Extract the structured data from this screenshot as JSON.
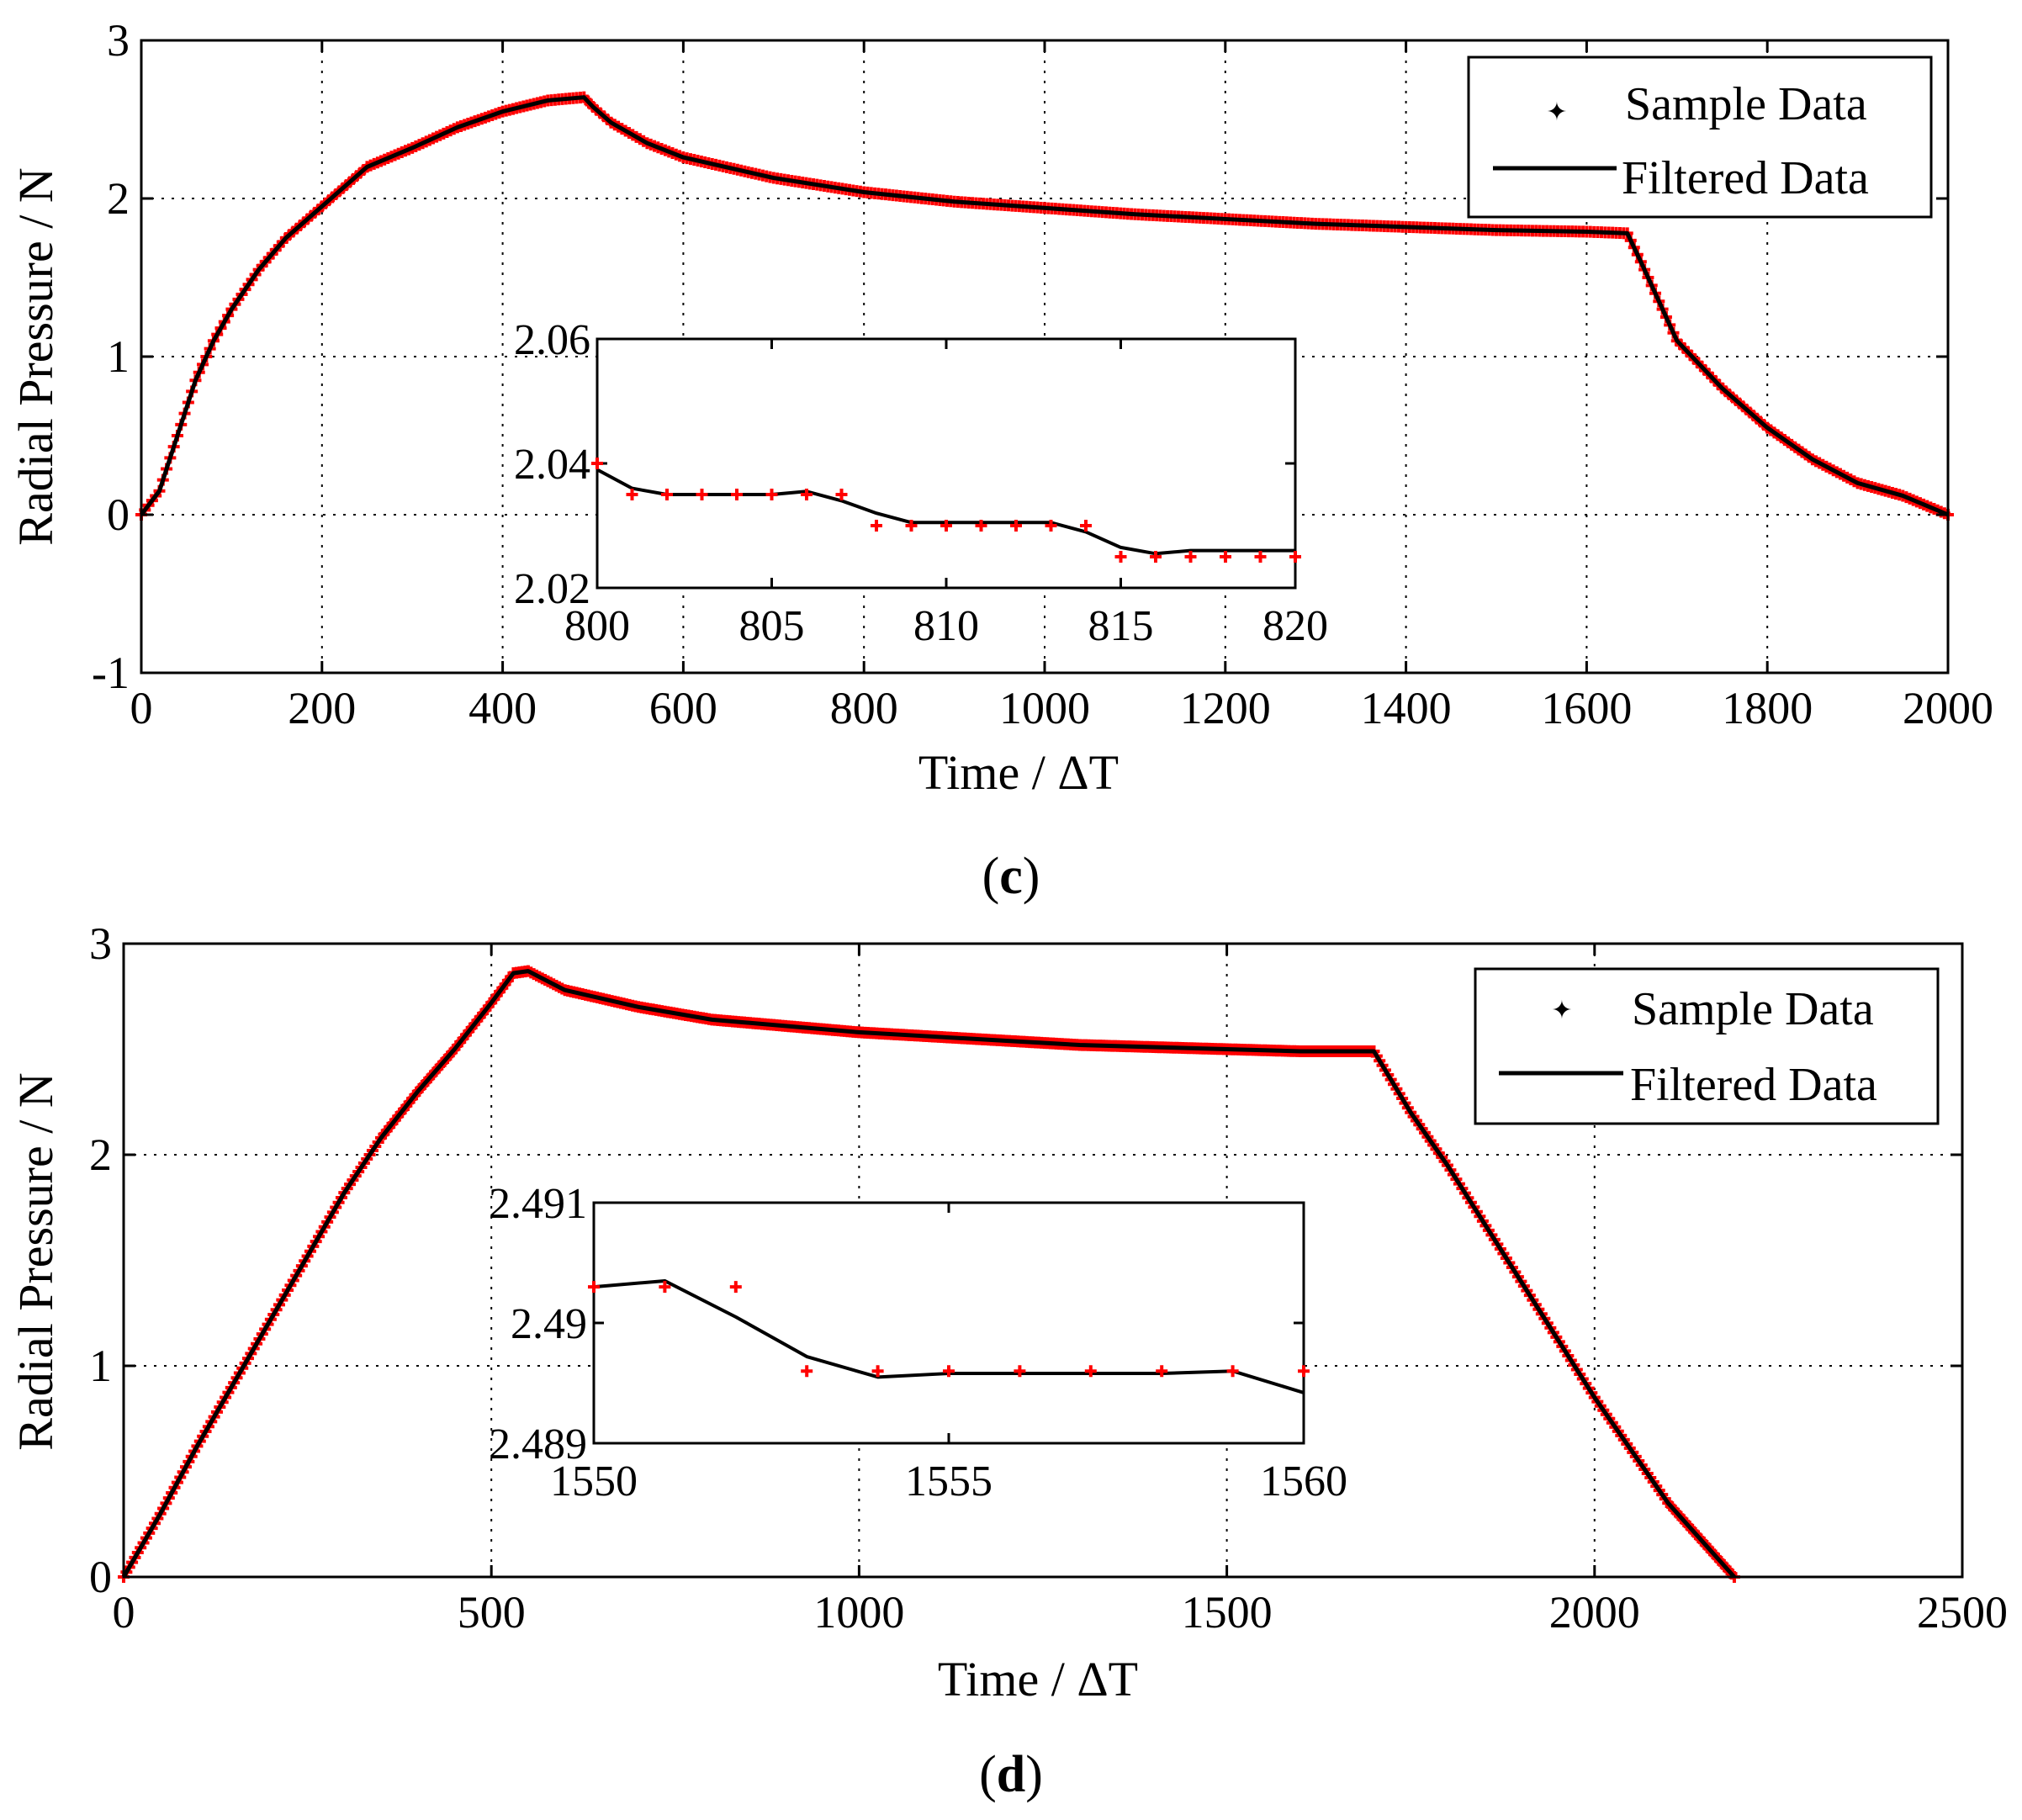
{
  "chart_data": [
    {
      "type": "scatter",
      "panel_label": {
        "open": "(",
        "letter": "c",
        "close": ")"
      },
      "xlabel": "Time / ΔT",
      "ylabel": "Radial Pressure / N",
      "xlim": [
        0,
        2000
      ],
      "ylim": [
        -1,
        3
      ],
      "xticks": [
        0,
        200,
        400,
        600,
        800,
        1000,
        1200,
        1400,
        1600,
        1800,
        2000
      ],
      "yticks": [
        -1,
        0,
        1,
        2,
        3
      ],
      "xtick_labels": [
        "0",
        "200",
        "400",
        "600",
        "800",
        "1000",
        "1200",
        "1400",
        "1600",
        "1800",
        "2000"
      ],
      "ytick_labels": [
        "-1",
        "0",
        "1",
        "2",
        "3"
      ],
      "grid": true,
      "legend": {
        "position": "top-right",
        "entries": [
          "Sample Data",
          "Filtered Data"
        ]
      },
      "series": [
        {
          "name": "Sample Data",
          "style": "red-markers",
          "color": "#ff0000",
          "x": [
            0,
            20,
            40,
            60,
            80,
            100,
            130,
            160,
            200,
            250,
            300,
            350,
            400,
            450,
            490,
            500,
            520,
            560,
            600,
            700,
            800,
            900,
            1000,
            1100,
            1200,
            1300,
            1400,
            1500,
            1600,
            1645,
            1660,
            1680,
            1700,
            1750,
            1800,
            1850,
            1900,
            1950,
            2000
          ],
          "y": [
            0,
            0.15,
            0.5,
            0.85,
            1.1,
            1.3,
            1.55,
            1.75,
            1.95,
            2.2,
            2.32,
            2.45,
            2.55,
            2.62,
            2.64,
            2.58,
            2.48,
            2.35,
            2.26,
            2.13,
            2.04,
            1.98,
            1.94,
            1.9,
            1.87,
            1.84,
            1.82,
            1.8,
            1.79,
            1.78,
            1.6,
            1.35,
            1.1,
            0.8,
            0.55,
            0.35,
            0.2,
            0.12,
            0.0
          ]
        },
        {
          "name": "Filtered Data",
          "style": "black-line",
          "color": "#000000",
          "x": [
            0,
            20,
            40,
            60,
            80,
            100,
            130,
            160,
            200,
            250,
            300,
            350,
            400,
            450,
            490,
            500,
            520,
            560,
            600,
            700,
            800,
            900,
            1000,
            1100,
            1200,
            1300,
            1400,
            1500,
            1600,
            1645,
            1660,
            1680,
            1700,
            1750,
            1800,
            1850,
            1900,
            1950,
            2000
          ],
          "y": [
            0,
            0.15,
            0.5,
            0.85,
            1.1,
            1.3,
            1.55,
            1.75,
            1.95,
            2.2,
            2.32,
            2.45,
            2.55,
            2.62,
            2.64,
            2.58,
            2.48,
            2.35,
            2.26,
            2.13,
            2.04,
            1.98,
            1.94,
            1.9,
            1.87,
            1.84,
            1.82,
            1.8,
            1.79,
            1.78,
            1.6,
            1.35,
            1.1,
            0.8,
            0.55,
            0.35,
            0.2,
            0.12,
            0.0
          ]
        }
      ],
      "inset": {
        "xlim": [
          800,
          820
        ],
        "ylim": [
          2.02,
          2.06
        ],
        "xticks": [
          800,
          805,
          810,
          815,
          820
        ],
        "yticks": [
          2.02,
          2.04,
          2.06
        ],
        "xtick_labels": [
          "800",
          "805",
          "810",
          "815",
          "820"
        ],
        "ytick_labels": [
          "2.02",
          "2.04",
          "2.06"
        ],
        "sample_x": [
          800,
          801,
          802,
          803,
          804,
          805,
          806,
          807,
          808,
          809,
          810,
          811,
          812,
          813,
          814,
          815,
          816,
          817,
          818,
          819,
          820
        ],
        "sample_y": [
          2.04,
          2.035,
          2.035,
          2.035,
          2.035,
          2.035,
          2.035,
          2.035,
          2.03,
          2.03,
          2.03,
          2.03,
          2.03,
          2.03,
          2.03,
          2.025,
          2.025,
          2.025,
          2.025,
          2.025,
          2.025
        ],
        "filtered_x": [
          800,
          801,
          802,
          803,
          804,
          805,
          806,
          807,
          808,
          809,
          810,
          811,
          812,
          813,
          814,
          815,
          816,
          817,
          818,
          819,
          820
        ],
        "filtered_y": [
          2.039,
          2.036,
          2.035,
          2.035,
          2.035,
          2.035,
          2.0355,
          2.034,
          2.032,
          2.0305,
          2.0305,
          2.0305,
          2.0305,
          2.0305,
          2.029,
          2.0265,
          2.0255,
          2.026,
          2.026,
          2.026,
          2.026
        ]
      }
    },
    {
      "type": "scatter",
      "panel_label": {
        "open": "(",
        "letter": "d",
        "close": ")"
      },
      "xlabel": "Time / ΔT",
      "ylabel": "Radial Pressure / N",
      "xlim": [
        0,
        2500
      ],
      "ylim": [
        0,
        3
      ],
      "xticks": [
        0,
        500,
        1000,
        1500,
        2000,
        2500
      ],
      "yticks": [
        0,
        1,
        2,
        3
      ],
      "xtick_labels": [
        "0",
        "500",
        "1000",
        "1500",
        "2000",
        "2500"
      ],
      "ytick_labels": [
        "0",
        "1",
        "2",
        "3"
      ],
      "grid": true,
      "legend": {
        "position": "top-right",
        "entries": [
          "Sample Data",
          "Filtered Data"
        ]
      },
      "series": [
        {
          "name": "Sample Data",
          "style": "red-markers",
          "color": "#ff0000",
          "x": [
            0,
            50,
            100,
            150,
            200,
            250,
            300,
            350,
            400,
            450,
            500,
            530,
            550,
            600,
            700,
            800,
            900,
            1000,
            1100,
            1200,
            1300,
            1400,
            1500,
            1600,
            1700,
            1750,
            1800,
            1900,
            2000,
            2100,
            2190
          ],
          "y": [
            0,
            0.3,
            0.62,
            0.92,
            1.22,
            1.52,
            1.82,
            2.08,
            2.3,
            2.5,
            2.72,
            2.86,
            2.87,
            2.78,
            2.7,
            2.64,
            2.61,
            2.58,
            2.56,
            2.54,
            2.52,
            2.51,
            2.5,
            2.49,
            2.49,
            2.2,
            1.95,
            1.4,
            0.85,
            0.35,
            0.0
          ]
        },
        {
          "name": "Filtered Data",
          "style": "black-line",
          "color": "#000000",
          "x": [
            0,
            50,
            100,
            150,
            200,
            250,
            300,
            350,
            400,
            450,
            500,
            530,
            550,
            600,
            700,
            800,
            900,
            1000,
            1100,
            1200,
            1300,
            1400,
            1500,
            1600,
            1700,
            1750,
            1800,
            1900,
            2000,
            2100,
            2190
          ],
          "y": [
            0,
            0.3,
            0.62,
            0.92,
            1.22,
            1.52,
            1.82,
            2.08,
            2.3,
            2.5,
            2.72,
            2.86,
            2.87,
            2.78,
            2.7,
            2.64,
            2.61,
            2.58,
            2.56,
            2.54,
            2.52,
            2.51,
            2.5,
            2.49,
            2.49,
            2.2,
            1.95,
            1.4,
            0.85,
            0.35,
            0.0
          ]
        }
      ],
      "inset": {
        "xlim": [
          1550,
          1560
        ],
        "ylim": [
          2.489,
          2.491
        ],
        "xticks": [
          1550,
          1555,
          1560
        ],
        "yticks": [
          2.489,
          2.49,
          2.491
        ],
        "xtick_labels": [
          "1550",
          "1555",
          "1560"
        ],
        "ytick_labels": [
          "2.489",
          "2.49",
          "2.491"
        ],
        "sample_x": [
          1550,
          1551,
          1552,
          1553,
          1554,
          1555,
          1556,
          1557,
          1558,
          1559,
          1560
        ],
        "sample_y": [
          2.4903,
          2.4903,
          2.4903,
          2.4896,
          2.4896,
          2.4896,
          2.4896,
          2.4896,
          2.4896,
          2.4896,
          2.4896
        ],
        "filtered_x": [
          1550,
          1551,
          1552,
          1553,
          1554,
          1555,
          1556,
          1557,
          1558,
          1559,
          1560
        ],
        "filtered_y": [
          2.4903,
          2.49035,
          2.49005,
          2.48972,
          2.48955,
          2.48958,
          2.48958,
          2.48958,
          2.48958,
          2.4896,
          2.48942
        ]
      }
    }
  ]
}
